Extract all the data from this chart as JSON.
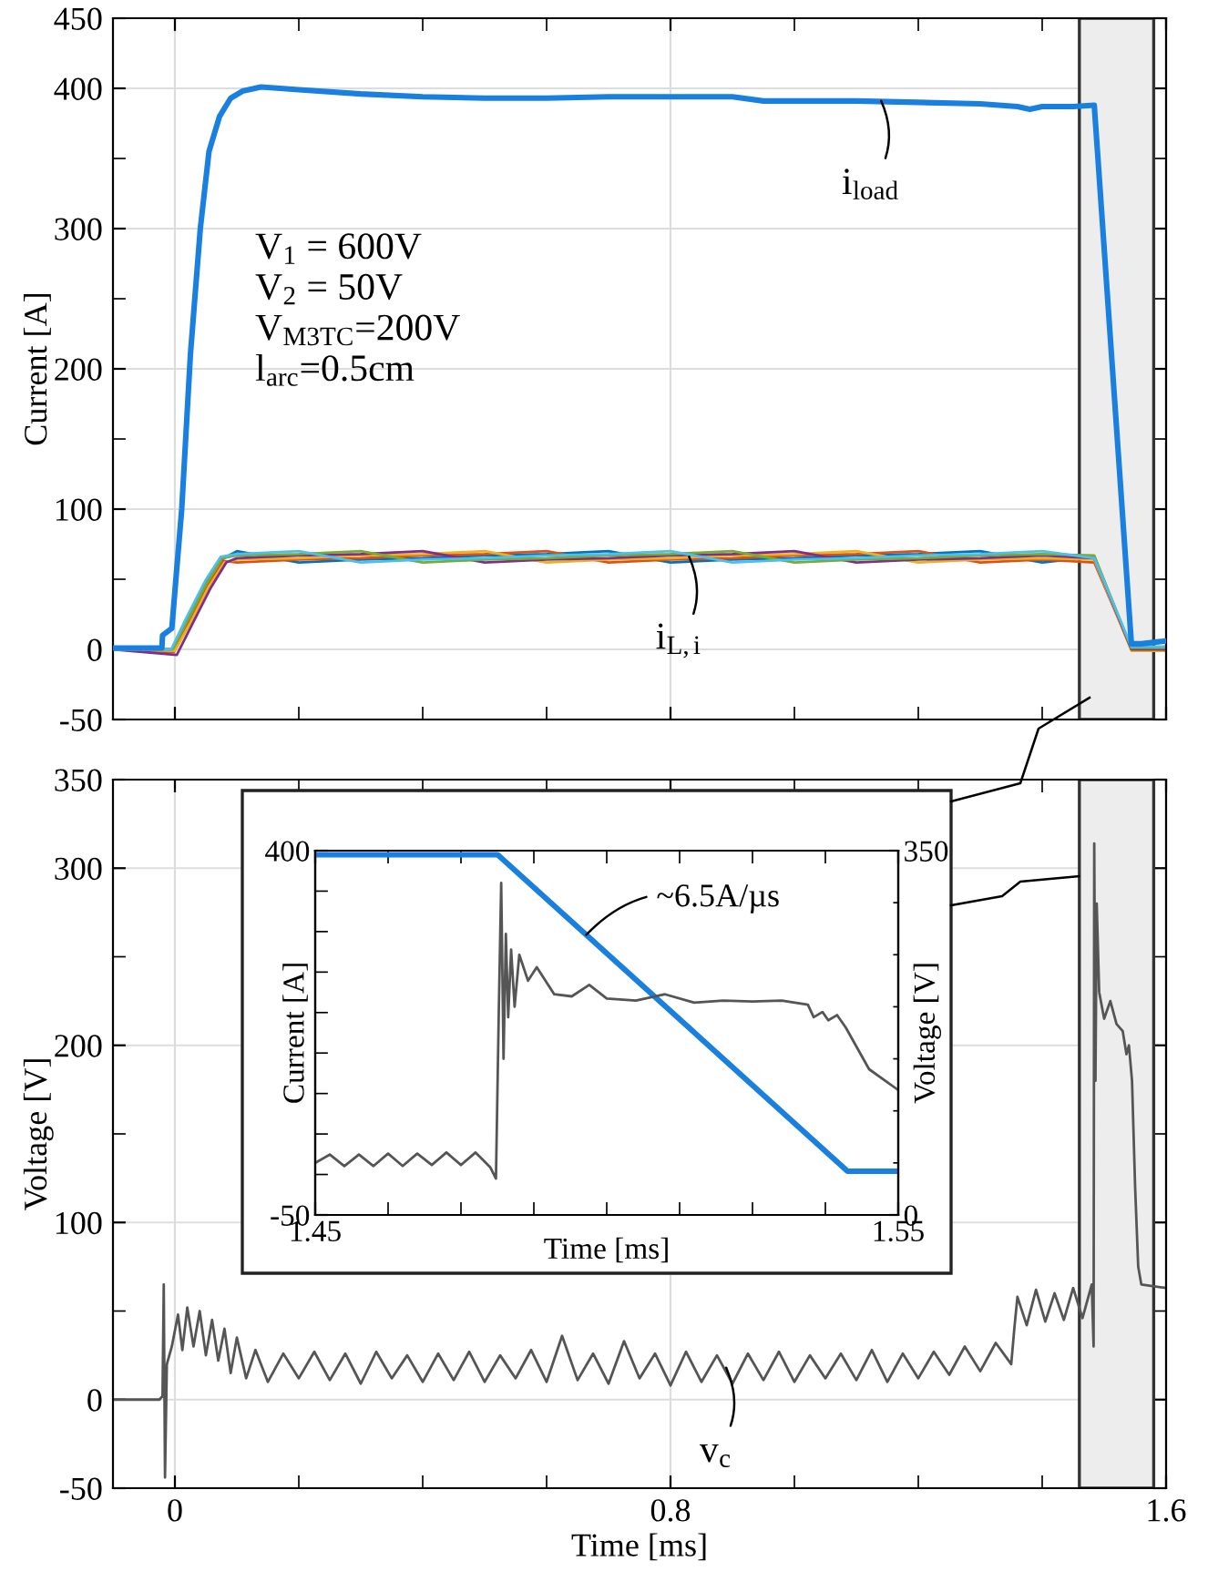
{
  "chart_data": [
    {
      "type": "line",
      "ylabel": "Current [A]",
      "xlim": [
        -0.1,
        1.6
      ],
      "ylim": [
        -50,
        450
      ],
      "xticks": [
        0,
        {
          "value": 0.2,
          "label": null
        },
        {
          "value": 0.4,
          "label": null
        },
        {
          "value": 0.6,
          "label": null
        },
        0.8,
        {
          "value": 1.0,
          "label": null
        },
        {
          "value": 1.2,
          "label": null
        },
        {
          "value": 1.4,
          "label": null
        },
        1.6
      ],
      "yticks": [
        -50,
        0,
        {
          "value": 50,
          "label": null
        },
        100,
        {
          "value": 150,
          "label": null
        },
        200,
        {
          "value": 250,
          "label": null
        },
        300,
        {
          "value": 350,
          "label": null
        },
        400,
        450
      ],
      "tick_labels": "y",
      "grid": true,
      "line_style": "solid",
      "marker": "none",
      "bands": [
        {
          "axis": "x",
          "from": 1.46,
          "to": 1.58,
          "color": "#ededed"
        }
      ],
      "annotations": [
        "V$_{1}$ = 600V",
        "V$_{2}$ = 50V",
        "V$_{M3TC}$=200V",
        "l$_{arc}$=0.5cm",
        {
          "text": "i$_{load}$",
          "x": 1.14,
          "y": 391
        },
        {
          "text": "i$_{L,i}$",
          "x": 0.83,
          "y": 66
        }
      ],
      "series": [
        {
          "color": "#1a80e0",
          "x": [
            -0.1,
            -0.021,
            -0.02,
            -0.005,
            0.011,
            0.025,
            0.041,
            0.055,
            0.072,
            0.09,
            0.109,
            0.139,
            0.2,
            0.3,
            0.4,
            0.5,
            0.6,
            0.7,
            0.8,
            0.9,
            0.95,
            1.0,
            1.1,
            1.2,
            1.3,
            1.36,
            1.38,
            1.4,
            1.45,
            1.484,
            1.49,
            1.52,
            1.544,
            1.56,
            1.6
          ],
          "values": [
            1,
            1,
            10,
            15,
            100,
            210,
            300,
            355,
            380,
            393,
            398,
            401,
            399,
            396,
            394,
            393,
            393,
            394,
            394,
            394,
            391,
            391,
            391,
            390,
            389,
            387,
            385,
            387,
            387,
            388,
            350,
            158,
            4,
            4,
            6
          ]
        },
        {
          "color": "#0072bd",
          "x": [
            -0.1,
            -0.005,
            0.02,
            0.05,
            0.075,
            0.1,
            0.2,
            0.3,
            0.4,
            0.5,
            0.6,
            0.7,
            0.8,
            0.9,
            1.0,
            1.1,
            1.2,
            1.3,
            1.4,
            1.484,
            1.544,
            1.6
          ],
          "values": [
            0,
            0,
            22,
            48,
            64,
            70,
            62,
            64,
            65,
            67,
            68,
            70,
            62,
            64,
            65,
            67,
            68,
            70,
            62,
            66,
            0,
            0
          ]
        },
        {
          "color": "#d95319",
          "x": [
            -0.1,
            -0.002,
            0.023,
            0.053,
            0.078,
            0.1,
            0.2,
            0.3,
            0.4,
            0.5,
            0.6,
            0.7,
            0.8,
            0.9,
            1.0,
            1.1,
            1.2,
            1.3,
            1.4,
            1.484,
            1.544,
            1.6
          ],
          "values": [
            0,
            -2,
            20,
            46,
            63,
            62,
            64,
            65,
            67,
            68,
            70,
            62,
            64,
            65,
            67,
            68,
            70,
            62,
            64,
            62,
            0,
            0
          ]
        },
        {
          "color": "#edb120",
          "x": [
            -0.1,
            0.0,
            0.025,
            0.055,
            0.08,
            0.1,
            0.2,
            0.3,
            0.4,
            0.5,
            0.6,
            0.7,
            0.8,
            0.9,
            1.0,
            1.1,
            1.2,
            1.3,
            1.4,
            1.484,
            1.544,
            1.6
          ],
          "values": [
            0,
            -1,
            19,
            45,
            62,
            64,
            65,
            67,
            68,
            70,
            62,
            64,
            65,
            67,
            68,
            70,
            62,
            64,
            65,
            64,
            -1,
            -1
          ]
        },
        {
          "color": "#7e2f8e",
          "x": [
            -0.1,
            0.003,
            0.028,
            0.058,
            0.083,
            0.1,
            0.2,
            0.3,
            0.4,
            0.5,
            0.6,
            0.7,
            0.8,
            0.9,
            1.0,
            1.1,
            1.2,
            1.3,
            1.4,
            1.484,
            1.544,
            1.6
          ],
          "values": [
            0,
            -4,
            18,
            44,
            62,
            65,
            67,
            68,
            70,
            62,
            64,
            65,
            67,
            68,
            70,
            62,
            64,
            65,
            67,
            65,
            0,
            0
          ]
        },
        {
          "color": "#77ac30",
          "x": [
            -0.1,
            -0.004,
            0.021,
            0.051,
            0.076,
            0.1,
            0.2,
            0.3,
            0.4,
            0.5,
            0.6,
            0.7,
            0.8,
            0.9,
            1.0,
            1.1,
            1.2,
            1.3,
            1.4,
            1.484,
            1.544,
            1.6
          ],
          "values": [
            0,
            0,
            21,
            47,
            65,
            67,
            68,
            70,
            62,
            64,
            65,
            67,
            68,
            70,
            62,
            64,
            65,
            67,
            68,
            67,
            1,
            1
          ]
        },
        {
          "color": "#4dbeee",
          "x": [
            -0.1,
            -0.006,
            0.019,
            0.049,
            0.074,
            0.1,
            0.2,
            0.3,
            0.4,
            0.5,
            0.6,
            0.7,
            0.8,
            0.9,
            1.0,
            1.1,
            1.2,
            1.3,
            1.4,
            1.484,
            1.544,
            1.6
          ],
          "values": [
            0,
            0,
            23,
            49,
            66,
            68,
            70,
            62,
            64,
            65,
            67,
            68,
            70,
            62,
            64,
            65,
            67,
            68,
            70,
            65,
            2,
            2
          ]
        }
      ]
    },
    {
      "type": "line",
      "xlabel": "Time [ms]",
      "ylabel": "Voltage [V]",
      "xlim": [
        -0.1,
        1.6
      ],
      "ylim": [
        -50,
        350
      ],
      "xticks": [
        0,
        {
          "value": 0.2,
          "label": null
        },
        {
          "value": 0.4,
          "label": null
        },
        {
          "value": 0.6,
          "label": null
        },
        0.8,
        {
          "value": 1.0,
          "label": null
        },
        {
          "value": 1.2,
          "label": null
        },
        {
          "value": 1.4,
          "label": null
        },
        1.6
      ],
      "yticks": [
        -50,
        0,
        {
          "value": 50,
          "label": null
        },
        100,
        {
          "value": 150,
          "label": null
        },
        200,
        {
          "value": 250,
          "label": null
        },
        300,
        350
      ],
      "grid": true,
      "line_style": "solid",
      "marker": "none",
      "bands": [
        {
          "axis": "x",
          "from": 1.46,
          "to": 1.58,
          "color": "#ededed"
        }
      ],
      "annotations": [
        {
          "text": "v$_{c}$",
          "x": 0.89,
          "y": 18
        }
      ],
      "series": [
        {
          "color": "#555555",
          "x": [
            -0.1,
            -0.025,
            -0.02,
            -0.018,
            -0.016,
            -0.013,
            -0.005,
            0.005,
            0.012,
            0.02,
            0.03,
            0.04,
            0.05,
            0.06,
            0.07,
            0.08,
            0.09,
            0.1,
            0.115,
            0.13,
            0.15,
            0.175,
            0.2,
            0.225,
            0.25,
            0.275,
            0.3,
            0.325,
            0.35,
            0.375,
            0.4,
            0.425,
            0.45,
            0.475,
            0.5,
            0.525,
            0.55,
            0.575,
            0.6,
            0.625,
            0.65,
            0.675,
            0.7,
            0.725,
            0.75,
            0.775,
            0.8,
            0.825,
            0.85,
            0.875,
            0.9,
            0.925,
            0.95,
            0.975,
            1.0,
            1.025,
            1.05,
            1.075,
            1.1,
            1.125,
            1.15,
            1.175,
            1.2,
            1.225,
            1.25,
            1.275,
            1.3,
            1.325,
            1.35,
            1.355,
            1.36,
            1.375,
            1.39,
            1.405,
            1.42,
            1.435,
            1.45,
            1.465,
            1.48,
            1.483,
            1.484,
            1.486,
            1.488,
            1.492,
            1.5,
            1.51,
            1.52,
            1.53,
            1.536,
            1.54,
            1.545,
            1.55,
            1.555,
            1.56,
            1.6
          ],
          "values": [
            0,
            0,
            2,
            65,
            -44,
            20,
            30,
            48,
            28,
            52,
            30,
            50,
            25,
            45,
            22,
            40,
            15,
            35,
            12,
            28,
            10,
            26,
            12,
            27,
            11,
            26,
            9,
            27,
            12,
            25,
            10,
            26,
            11,
            27,
            10,
            25,
            12,
            28,
            10,
            36,
            11,
            26,
            9,
            33,
            12,
            26,
            8,
            27,
            10,
            25,
            9,
            26,
            11,
            27,
            10,
            25,
            12,
            26,
            11,
            28,
            10,
            26,
            12,
            27,
            14,
            30,
            16,
            32,
            20,
            40,
            58,
            42,
            62,
            44,
            60,
            45,
            63,
            46,
            65,
            30,
            314,
            180,
            280,
            230,
            215,
            225,
            212,
            208,
            195,
            200,
            180,
            120,
            75,
            65,
            63
          ]
        }
      ]
    },
    {
      "type": "line",
      "xlabel": "Time [ms]",
      "ylabel": "Current [A]",
      "y2label": "Voltage [V]",
      "xlim": [
        1.45,
        1.55
      ],
      "ylim": [
        -50,
        400
      ],
      "y2lim": [
        0,
        350
      ],
      "xticks": [
        1.45,
        {
          "value": 1.4625,
          "label": null
        },
        {
          "value": 1.475,
          "label": null
        },
        {
          "value": 1.4875,
          "label": null
        },
        {
          "value": 1.5,
          "label": null
        },
        {
          "value": 1.5125,
          "label": null
        },
        {
          "value": 1.525,
          "label": null
        },
        {
          "value": 1.5375,
          "label": null
        },
        1.55
      ],
      "yticks": [
        -50,
        {
          "value": 0,
          "label": null
        },
        {
          "value": 50,
          "label": null
        },
        {
          "value": 100,
          "label": null
        },
        {
          "value": 150,
          "label": null
        },
        {
          "value": 200,
          "label": null
        },
        {
          "value": 250,
          "label": null
        },
        {
          "value": 300,
          "label": null
        },
        {
          "value": 350,
          "label": null
        },
        400
      ],
      "y2ticks": [
        0,
        {
          "value": 50,
          "label": null
        },
        {
          "value": 100,
          "label": null
        },
        {
          "value": 150,
          "label": null
        },
        {
          "value": 200,
          "label": null
        },
        {
          "value": 250,
          "label": null
        },
        {
          "value": 300,
          "label": null
        },
        350
      ],
      "line_style": "solid",
      "marker": "none",
      "annotations": [
        {
          "text": "~6.5A/µs",
          "x": 1.4965,
          "y": 296
        }
      ],
      "series": [
        {
          "color": "#555555",
          "axis": "y2",
          "x": [
            1.45,
            1.4525,
            1.455,
            1.4575,
            1.46,
            1.4625,
            1.465,
            1.4675,
            1.47,
            1.4725,
            1.475,
            1.4775,
            1.48,
            1.481,
            1.4815,
            1.4819,
            1.4823,
            1.4827,
            1.4831,
            1.4836,
            1.4842,
            1.485,
            1.4865,
            1.488,
            1.491,
            1.494,
            1.497,
            1.5,
            1.505,
            1.51,
            1.515,
            1.52,
            1.525,
            1.53,
            1.5345,
            1.5355,
            1.537,
            1.538,
            1.5395,
            1.541,
            1.545,
            1.55
          ],
          "values": [
            50,
            58,
            47,
            58,
            47,
            59,
            47,
            59,
            48,
            60,
            48,
            60,
            46,
            35,
            200,
            319,
            150,
            270,
            190,
            255,
            200,
            250,
            225,
            238,
            212,
            210,
            221,
            208,
            206,
            212,
            204,
            206,
            205,
            206,
            202,
            190,
            195,
            187,
            192,
            180,
            140,
            120
          ]
        },
        {
          "color": "#1a80e0",
          "x": [
            1.45,
            1.4813,
            1.5413,
            1.55
          ],
          "values": [
            395,
            395,
            4,
            4
          ]
        }
      ]
    }
  ]
}
